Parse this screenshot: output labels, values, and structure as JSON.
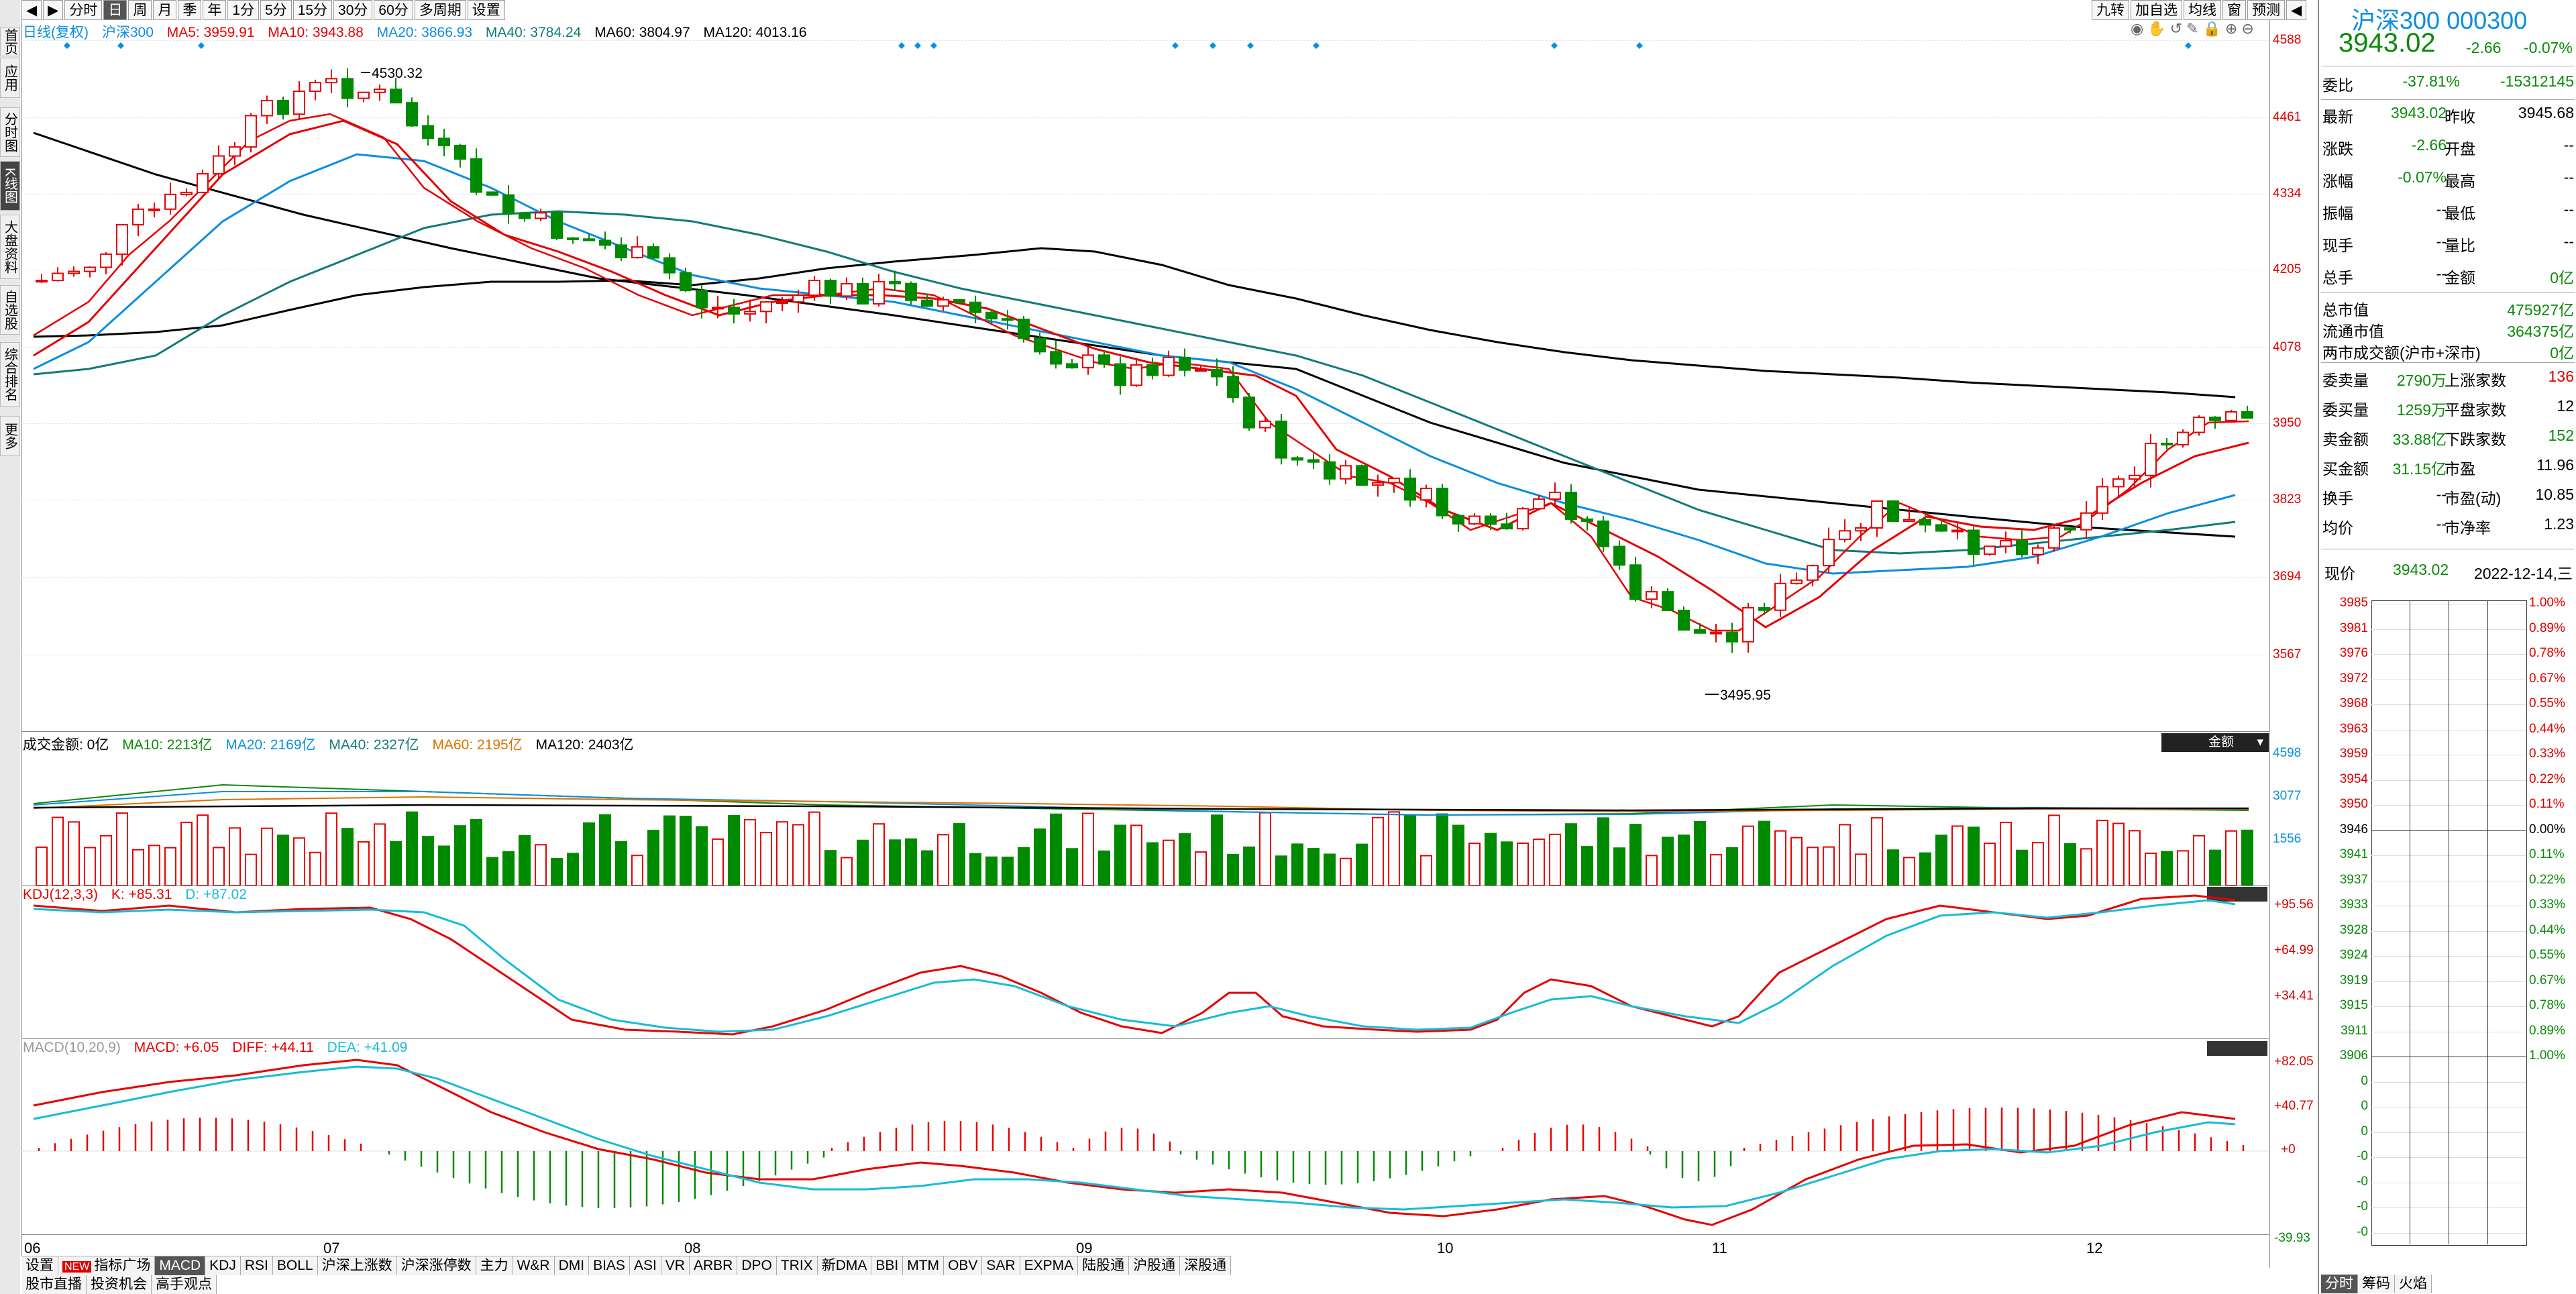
{
  "colors": {
    "up": "#e60000",
    "down": "#008a00",
    "ma5": "#000000",
    "ma10": "#e60000",
    "ma20": "#0a8ee0",
    "ma40": "#127a7a",
    "ma60": "#000000",
    "kdj_k": "#e60000",
    "kdj_d": "#16bcd6"
  },
  "top_buttons": [
    "分时",
    "日",
    "周",
    "月",
    "季",
    "年",
    "1分",
    "5分",
    "15分",
    "30分",
    "60分",
    "多周期",
    "设置"
  ],
  "top_right_buttons": [
    "九转",
    "加自选",
    "均线",
    "窗",
    "预测"
  ],
  "left_tabs": [
    "首页",
    "应用",
    "分时图",
    "K线图",
    "大盘资料",
    "自选股",
    "综合排名",
    "更多"
  ],
  "main_legend": {
    "mode": "日线(复权)",
    "name": "沪深300",
    "ma5": "MA5: 3959.91",
    "ma10": "MA10: 3943.88",
    "ma20": "MA20: 3866.93",
    "ma40": "MA40: 3784.24",
    "ma60": "MA60: 3804.97",
    "ma120": "MA120: 4013.16"
  },
  "price_axis": [
    "4588",
    "4461",
    "4334",
    "4205",
    "4078",
    "3950",
    "3823",
    "3694",
    "3567"
  ],
  "annotations": {
    "high": "4530.32",
    "low": "3495.95"
  },
  "volume_legend": {
    "label": "成交金额: 0亿",
    "ma10": "MA10: 2213亿",
    "ma20": "MA20: 2169亿",
    "ma40": "MA40: 2327亿",
    "ma60": "MA60: 2195亿",
    "ma120": "MA120: 2403亿",
    "dropdown": "金额"
  },
  "volume_axis": [
    "4598",
    "3077",
    "1556"
  ],
  "kdj_legend": {
    "label": "KDJ(12,3,3)",
    "k": "K: +85.31",
    "d": "D: +87.02"
  },
  "kdj_axis": [
    "+95.56",
    "+64.99",
    "+34.41"
  ],
  "macd_legend": {
    "label": "MACD(10,20,9)",
    "macd": "MACD: +6.05",
    "diff": "DIFF: +44.11",
    "dea": "DEA: +41.09"
  },
  "macd_axis": [
    "+82.05",
    "+40.77",
    "+0",
    "-39.93"
  ],
  "x_axis": [
    "06",
    "07",
    "08",
    "09",
    "10",
    "11",
    "12"
  ],
  "bottom_tabs": [
    "设置",
    "指标广场",
    "MACD",
    "KDJ",
    "RSI",
    "BOLL",
    "沪深上涨数",
    "沪深涨停数",
    "主力",
    "W&R",
    "DMI",
    "BIAS",
    "ASI",
    "VR",
    "ARBR",
    "DPO",
    "TRIX",
    "新DMA",
    "BBI",
    "MTM",
    "OBV",
    "SAR",
    "EXPMA",
    "陆股通",
    "沪股通",
    "深股通"
  ],
  "bottom_tabs2": [
    "股市直播",
    "投资机会",
    "高手观点"
  ],
  "new_badge": "NEW",
  "right_panel": {
    "title": "沪深300 000300",
    "price": "3943.02",
    "change": "-2.66",
    "change_pct": "-0.07%",
    "rows1": [
      {
        "l": "委比",
        "v": "-37.81%",
        "v2": "-15312145"
      }
    ],
    "rows2": [
      {
        "l": "最新",
        "v": "3943.02",
        "l2": "昨收",
        "v2": "3945.68"
      },
      {
        "l": "涨跌",
        "v": "-2.66",
        "l2": "开盘",
        "v2": "--"
      },
      {
        "l": "涨幅",
        "v": "-0.07%",
        "l2": "最高",
        "v2": "--"
      },
      {
        "l": "振幅",
        "v": "--",
        "l2": "最低",
        "v2": "--"
      },
      {
        "l": "现手",
        "v": "--",
        "l2": "量比",
        "v2": "--"
      },
      {
        "l": "总手",
        "v": "--",
        "l2": "金额",
        "v2": "0亿"
      }
    ],
    "rows3": [
      {
        "l": "总市值",
        "v2": "475927亿"
      },
      {
        "l": "流通市值",
        "v2": "364375亿"
      },
      {
        "l": "两市成交额(沪市+深市)",
        "v2": "0亿"
      }
    ],
    "rows4": [
      {
        "l": "委卖量",
        "v": "2790万",
        "l2": "上涨家数",
        "v2": "136"
      },
      {
        "l": "委买量",
        "v": "1259万",
        "l2": "平盘家数",
        "v2": "12"
      },
      {
        "l": "卖金额",
        "v": "33.88亿",
        "l2": "下跌家数",
        "v2": "152"
      },
      {
        "l": "买金额",
        "v": "31.15亿",
        "l2": "市盈",
        "v2": "11.96"
      },
      {
        "l": "换手",
        "v": "--",
        "l2": "市盈(动)",
        "v2": "10.85"
      },
      {
        "l": "均价",
        "v": "--",
        "l2": "市净率",
        "v2": "1.23"
      }
    ],
    "now_label": "现价",
    "now_price": "3943.02",
    "date": "2022-12-14,三",
    "grid_prices": [
      "3985",
      "3981",
      "3976",
      "3972",
      "3968",
      "3963",
      "3959",
      "3954",
      "3950",
      "3946",
      "3941",
      "3937",
      "3933",
      "3928",
      "3924",
      "3919",
      "3915",
      "3911",
      "3906",
      "0",
      "0",
      "0",
      "-0",
      "-0",
      "-0",
      "-0"
    ],
    "grid_pcts": [
      "1.00%",
      "0.89%",
      "0.78%",
      "0.67%",
      "0.55%",
      "0.44%",
      "0.33%",
      "0.22%",
      "0.11%",
      "0.00%",
      "0.11%",
      "0.22%",
      "0.33%",
      "0.44%",
      "0.55%",
      "0.67%",
      "0.78%",
      "0.89%",
      "1.00%"
    ],
    "bottom_tabs": [
      "分时",
      "筹码",
      "火焰"
    ]
  }
}
